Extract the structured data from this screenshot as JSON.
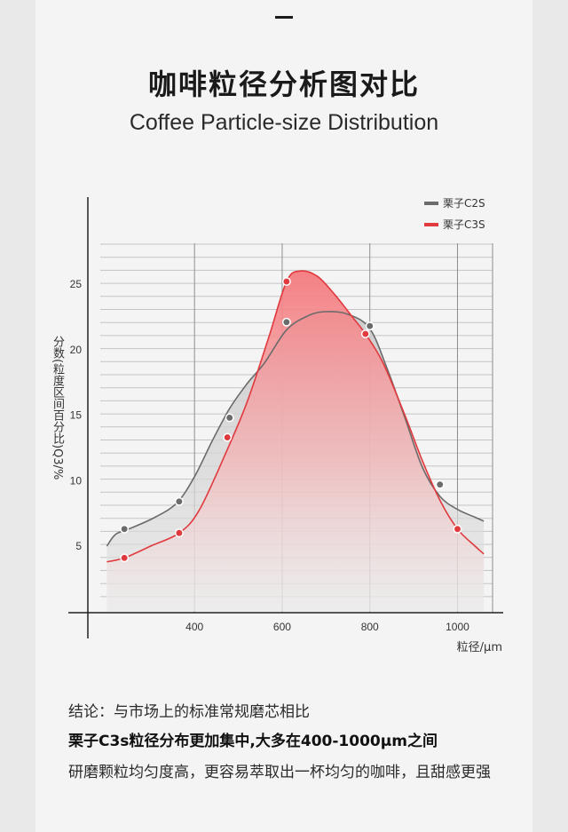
{
  "header": {
    "dash": "—",
    "title": "咖啡粒径分析图对比",
    "subtitle": "Coffee Particle-size Distribution"
  },
  "chart_data": {
    "type": "line",
    "xlabel": "粒径/μm",
    "ylabel": "分数(粒度区间百分比)Q3/%",
    "xlim": [
      185,
      1080
    ],
    "ylim": [
      0,
      30
    ],
    "x_ticks": [
      "400",
      "600",
      "800",
      "1000"
    ],
    "y_ticks": [
      "5",
      "10",
      "15",
      "20",
      "25"
    ],
    "grid": true,
    "legend_position": "top-right",
    "series": [
      {
        "name": "栗子C2S",
        "color": "#6b6b6b",
        "points": [
          [
            200,
            5.0
          ],
          [
            220,
            5.9
          ],
          [
            250,
            6.3
          ],
          [
            310,
            7.2
          ],
          [
            360,
            8.3
          ],
          [
            400,
            10.3
          ],
          [
            440,
            13.0
          ],
          [
            480,
            15.5
          ],
          [
            520,
            17.4
          ],
          [
            560,
            19.0
          ],
          [
            610,
            21.5
          ],
          [
            660,
            22.6
          ],
          [
            700,
            22.9
          ],
          [
            750,
            22.7
          ],
          [
            800,
            21.6
          ],
          [
            840,
            18.5
          ],
          [
            880,
            14.8
          ],
          [
            920,
            11.0
          ],
          [
            960,
            8.8
          ],
          [
            1000,
            7.8
          ],
          [
            1040,
            7.2
          ],
          [
            1060,
            6.9
          ]
        ],
        "markers": [
          [
            240,
            6.3
          ],
          [
            365,
            8.4
          ],
          [
            480,
            14.8
          ],
          [
            610,
            22.1
          ],
          [
            800,
            21.8
          ],
          [
            960,
            9.7
          ]
        ]
      },
      {
        "name": "栗子C3S",
        "color": "#e03a3e",
        "points": [
          [
            200,
            3.8
          ],
          [
            240,
            4.1
          ],
          [
            300,
            5.0
          ],
          [
            365,
            6.0
          ],
          [
            410,
            7.7
          ],
          [
            470,
            12.0
          ],
          [
            520,
            16.0
          ],
          [
            570,
            21.0
          ],
          [
            610,
            25.2
          ],
          [
            640,
            26.0
          ],
          [
            680,
            25.6
          ],
          [
            720,
            24.2
          ],
          [
            760,
            22.5
          ],
          [
            790,
            21.2
          ],
          [
            830,
            19.0
          ],
          [
            880,
            15.0
          ],
          [
            920,
            11.5
          ],
          [
            960,
            8.5
          ],
          [
            1000,
            6.3
          ],
          [
            1040,
            5.0
          ],
          [
            1060,
            4.4
          ]
        ],
        "markers": [
          [
            240,
            4.1
          ],
          [
            365,
            6.0
          ],
          [
            475,
            13.3
          ],
          [
            610,
            25.2
          ],
          [
            790,
            21.2
          ],
          [
            1000,
            6.3
          ]
        ]
      }
    ]
  },
  "conclusion": {
    "line1": "结论：与市场上的标准常规磨芯相比",
    "line2": "栗子C3s粒径分布更加集中,大多在400-1000μm之间",
    "line3": "研磨颗粒均匀度高，更容易萃取出一杯均匀的咖啡，且甜感更强"
  }
}
